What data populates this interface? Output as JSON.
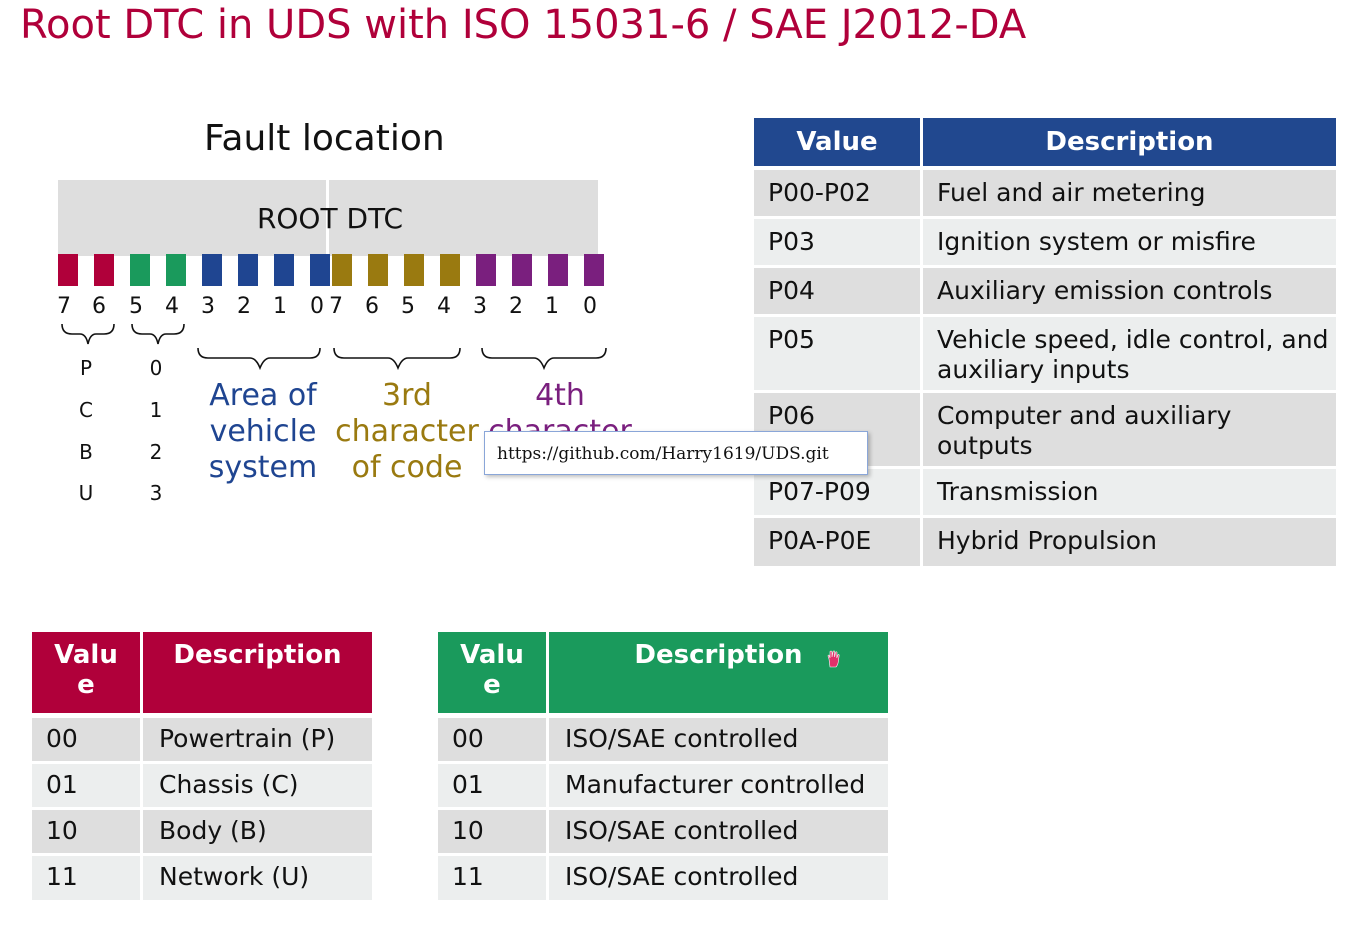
{
  "slide": {
    "title": "Root DTC in UDS with ISO 15031-6 / SAE J2012-DA"
  },
  "diagram": {
    "fault_location": "Fault location",
    "root_dtc": "ROOT DTC",
    "bit_numbers": [
      "7",
      "6",
      "5",
      "4",
      "3",
      "2",
      "1",
      "0",
      "7",
      "6",
      "5",
      "4",
      "3",
      "2",
      "1",
      "0"
    ],
    "bit_colors": [
      "#b0003a",
      "#b0003a",
      "#1a9a5c",
      "#1a9a5c",
      "#1f4591",
      "#1f4591",
      "#1f4591",
      "#1f4591",
      "#9a7a10",
      "#9a7a10",
      "#9a7a10",
      "#9a7a10",
      "#7a1f7e",
      "#7a1f7e",
      "#7a1f7e",
      "#7a1f7e"
    ],
    "first_char_letters": [
      "P",
      "C",
      "B",
      "U"
    ],
    "second_char_digits": [
      "0",
      "1",
      "2",
      "3"
    ],
    "area_label": {
      "line1": "Area of",
      "line2": "vehicle",
      "line3": "system",
      "color": "#1f4591"
    },
    "third_label": {
      "line1": "3rd",
      "line2": "character",
      "line3": "of code",
      "color": "#9a7a10"
    },
    "fourth_label": {
      "line1": "4th",
      "line2": "character",
      "color": "#7a1f7e"
    }
  },
  "tooltip": {
    "url": "https://github.com/Harry1619/UDS.git"
  },
  "system_table": {
    "header": {
      "value": "Value",
      "description": "Description"
    },
    "header_color": "#21488f",
    "rows": [
      {
        "value": "P00-P02",
        "description": "Fuel and air metering"
      },
      {
        "value": "P03",
        "description": "Ignition system or misfire"
      },
      {
        "value": "P04",
        "description": "Auxiliary emission controls"
      },
      {
        "value": "P05",
        "description": "Vehicle speed, idle control, and auxiliary inputs"
      },
      {
        "value": "P06",
        "description": "Computer and auxiliary outputs"
      },
      {
        "value": "P07-P09",
        "description": "Transmission"
      },
      {
        "value": "P0A-P0E",
        "description": "Hybrid Propulsion"
      }
    ]
  },
  "domain_table": {
    "header": {
      "value_line1": "Valu",
      "value_line2": "e",
      "description": "Description"
    },
    "header_color": "#b0003a",
    "rows": [
      {
        "value": "00",
        "description": "Powertrain (P)"
      },
      {
        "value": "01",
        "description": "Chassis (C)"
      },
      {
        "value": "10",
        "description": "Body (B)"
      },
      {
        "value": "11",
        "description": "Network (U)"
      }
    ]
  },
  "control_table": {
    "header": {
      "value_line1": "Valu",
      "value_line2": "e",
      "description": "Description"
    },
    "header_color": "#1a9a5c",
    "rows": [
      {
        "value": "00",
        "description": "ISO/SAE controlled"
      },
      {
        "value": "01",
        "description": "Manufacturer controlled"
      },
      {
        "value": "10",
        "description": "ISO/SAE controlled"
      },
      {
        "value": "11",
        "description": "ISO/SAE controlled"
      }
    ]
  }
}
